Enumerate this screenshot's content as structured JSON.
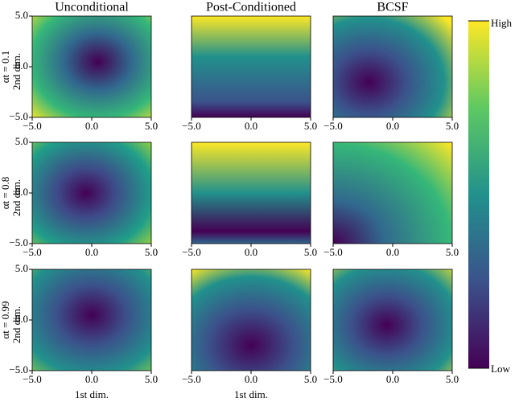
{
  "chart_data": {
    "type": "heatmap",
    "columns": [
      "Unconditional",
      "Post-Conditioned",
      "BCSF"
    ],
    "rows": [
      "αt = 0.1",
      "αt = 0.8",
      "αt = 0.99"
    ],
    "xlabel": "1st dim.",
    "ylabel": "2nd dim.",
    "xlim": [
      -5,
      5
    ],
    "ylim": [
      -5,
      5
    ],
    "xticks": [
      {
        "value": -5,
        "label": "−5.0"
      },
      {
        "value": 0,
        "label": "0.0"
      },
      {
        "value": 5,
        "label": "5.0"
      }
    ],
    "yticks": [
      {
        "value": -5,
        "label": "−5.0"
      },
      {
        "value": 0,
        "label": "0.0"
      },
      {
        "value": 5,
        "label": "5.0"
      }
    ],
    "colorbar": {
      "high": "High",
      "low": "Low"
    }
  }
}
